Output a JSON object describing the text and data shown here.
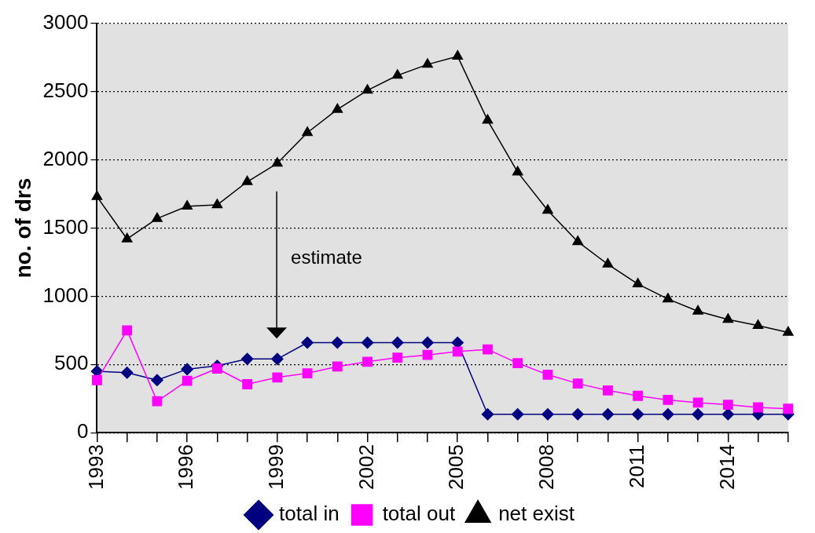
{
  "chart_data": {
    "type": "line",
    "ylabel": "no. of drs",
    "x": [
      1993,
      1994,
      1995,
      1996,
      1997,
      1998,
      1999,
      2000,
      2001,
      2002,
      2003,
      2004,
      2005,
      2006,
      2007,
      2008,
      2009,
      2010,
      2011,
      2012,
      2013,
      2014,
      2015,
      2016
    ],
    "series": [
      {
        "name": "total in",
        "color": "#000080",
        "marker": "diamond",
        "values": [
          450,
          440,
          385,
          465,
          490,
          540,
          540,
          660,
          660,
          660,
          660,
          660,
          660,
          135,
          135,
          135,
          135,
          135,
          135,
          135,
          135,
          135,
          135,
          135
        ]
      },
      {
        "name": "total out",
        "color": "#ff00ff",
        "marker": "square",
        "values": [
          385,
          750,
          230,
          380,
          470,
          355,
          405,
          435,
          485,
          520,
          550,
          570,
          595,
          610,
          510,
          425,
          360,
          310,
          270,
          240,
          220,
          205,
          185,
          175
        ]
      },
      {
        "name": "net exist",
        "color": "#000000",
        "marker": "triangle",
        "values": [
          1730,
          1420,
          1570,
          1660,
          1670,
          1840,
          1975,
          2200,
          2370,
          2510,
          2620,
          2700,
          2760,
          2290,
          1910,
          1630,
          1400,
          1235,
          1090,
          980,
          890,
          830,
          785,
          735
        ]
      }
    ],
    "xlim": [
      1993,
      2016
    ],
    "xticks": [
      1993,
      {
        "value": 1994,
        "label": null
      },
      {
        "value": 1995,
        "label": null
      },
      1996,
      {
        "value": 1997,
        "label": null
      },
      {
        "value": 1998,
        "label": null
      },
      1999,
      {
        "value": 2000,
        "label": null
      },
      {
        "value": 2001,
        "label": null
      },
      2002,
      {
        "value": 2003,
        "label": null
      },
      {
        "value": 2004,
        "label": null
      },
      2005,
      {
        "value": 2006,
        "label": null
      },
      {
        "value": 2007,
        "label": null
      },
      2008,
      {
        "value": 2009,
        "label": null
      },
      {
        "value": 2010,
        "label": null
      },
      2011,
      {
        "value": 2012,
        "label": null
      },
      {
        "value": 2013,
        "label": null
      },
      2014,
      {
        "value": 2015,
        "label": null
      },
      {
        "value": 2016,
        "label": null
      }
    ],
    "ylim": [
      0,
      3000
    ],
    "yticks": [
      0,
      500,
      1000,
      1500,
      2000,
      2500,
      3000
    ],
    "grid": "y",
    "legend": "bottom",
    "annotations": [
      "estimate"
    ]
  }
}
